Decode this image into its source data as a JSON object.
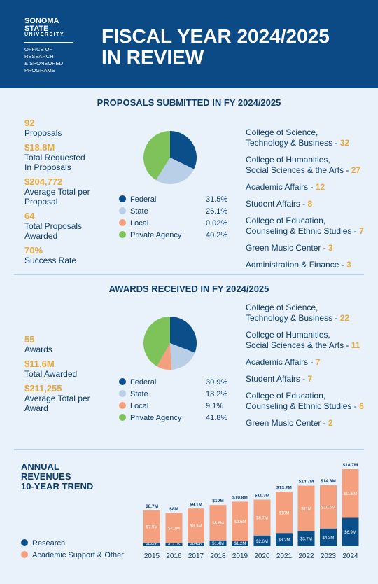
{
  "header": {
    "logo": [
      "SONOMA",
      "STATE",
      "UNIVERSITY"
    ],
    "office": [
      "OFFICE OF",
      "RESEARCH",
      "& SPONSORED",
      "PROGRAMS"
    ],
    "title": [
      "FISCAL YEAR 2024/2025",
      "IN REVIEW"
    ]
  },
  "proposals": {
    "title": "PROPOSALS SUBMITTED IN FY 2024/2025",
    "stats": [
      {
        "value": "92",
        "caption": "Proposals"
      },
      {
        "value": "$18.8M",
        "caption": "Total Requested In Proposals"
      },
      {
        "value": "$204,772",
        "caption": "Average Total per Proposal"
      },
      {
        "value": "64",
        "caption": "Total Proposals Awarded"
      },
      {
        "value": "70%",
        "caption": "Success Rate"
      }
    ],
    "departments": [
      {
        "lines": [
          "College of Science,",
          "Technology & Business - "
        ],
        "count": 32
      },
      {
        "lines": [
          "College of Humanities,",
          "Social Sciences & the Arts - "
        ],
        "count": 27
      },
      {
        "lines": [
          "Academic Affairs - "
        ],
        "count": 12
      },
      {
        "lines": [
          "Student Affairs - "
        ],
        "count": 8
      },
      {
        "lines": [
          "College of Education,",
          "Counseling & Ethnic Studies - "
        ],
        "count": 7
      },
      {
        "lines": [
          "Green Music Center - "
        ],
        "count": 3
      },
      {
        "lines": [
          "Administration & Finance - "
        ],
        "count": 3
      }
    ]
  },
  "awards": {
    "title": "AWARDS RECEIVED IN FY 2024/2025",
    "stats": [
      {
        "value": "55",
        "caption": "Awards"
      },
      {
        "value": "$11.6M",
        "caption": "Total Awarded"
      },
      {
        "value": "$211,255",
        "caption": "Average Total per Award"
      }
    ],
    "departments": [
      {
        "lines": [
          "College of Science,",
          "Technology & Business - "
        ],
        "count": 22
      },
      {
        "lines": [
          "College of Humanities,",
          "Social Sciences & the Arts - "
        ],
        "count": 11
      },
      {
        "lines": [
          "Academic Affairs - "
        ],
        "count": 7
      },
      {
        "lines": [
          "Student Affairs - "
        ],
        "count": 7
      },
      {
        "lines": [
          "College of Education,",
          "Counseling & Ethnic Studies - "
        ],
        "count": 6
      },
      {
        "lines": [
          "Green Music Center - "
        ],
        "count": 2
      }
    ]
  },
  "chart_data": [
    {
      "type": "pie",
      "categories": [
        "Federal",
        "State",
        "Local",
        "Private Agency"
      ],
      "values": [
        31.5,
        26.1,
        0.02,
        40.2
      ],
      "value_labels": [
        "31.5%",
        "26.1%",
        "0.02%",
        "40.2%"
      ],
      "colors": [
        "#0b4f8a",
        "#b9cfe8",
        "#f4a07e",
        "#7dc35a"
      ]
    },
    {
      "type": "pie",
      "categories": [
        "Federal",
        "State",
        "Local",
        "Private Agency"
      ],
      "values": [
        30.9,
        18.2,
        9.1,
        41.8
      ],
      "value_labels": [
        "30.9%",
        "18.2%",
        "9.1%",
        "41.8%"
      ],
      "colors": [
        "#0b4f8a",
        "#b9cfe8",
        "#f4a07e",
        "#7dc35a"
      ]
    },
    {
      "type": "stacked_bar",
      "title": [
        "ANNUAL",
        "REVENUES",
        "10-YEAR TREND"
      ],
      "categories": [
        "2015",
        "2016",
        "2017",
        "2018",
        "2019",
        "2020",
        "2021",
        "2022",
        "2023",
        "2024"
      ],
      "series": [
        {
          "name": "Research",
          "color": "#0b4f8a",
          "values": [
            827000,
            777000,
            846000,
            1400000,
            1200000,
            2600000,
            3200000,
            3700000,
            4300000,
            6900000
          ],
          "value_labels": [
            "$827K",
            "$777K",
            "$846K",
            "$1.4M",
            "$1.2M",
            "$2.6M",
            "$3.2M",
            "$3.7M",
            "$4.3M",
            "$6.9M"
          ]
        },
        {
          "name": "Academic Support & Other",
          "color": "#f4a07e",
          "values": [
            7900000,
            7300000,
            8300000,
            8600000,
            9600000,
            8700000,
            10000000,
            11000000,
            10500000,
            11800000
          ],
          "value_labels": [
            "$7.9M",
            "$7.3M",
            "$8.3M",
            "$8.6M",
            "$9.6M",
            "$8.7M",
            "$10M",
            "$11M",
            "$10.5M",
            "$11.8M"
          ]
        }
      ],
      "totals": [
        8700000,
        8000000,
        9100000,
        10000000,
        10800000,
        11300000,
        13200000,
        14700000,
        14800000,
        18700000
      ],
      "total_labels": [
        "$8.7M",
        "$8M",
        "$9.1M",
        "$10M",
        "$10.8M",
        "$11.3M",
        "$13.2M",
        "$14.7M",
        "$14.8M",
        "$18.7M"
      ]
    }
  ]
}
